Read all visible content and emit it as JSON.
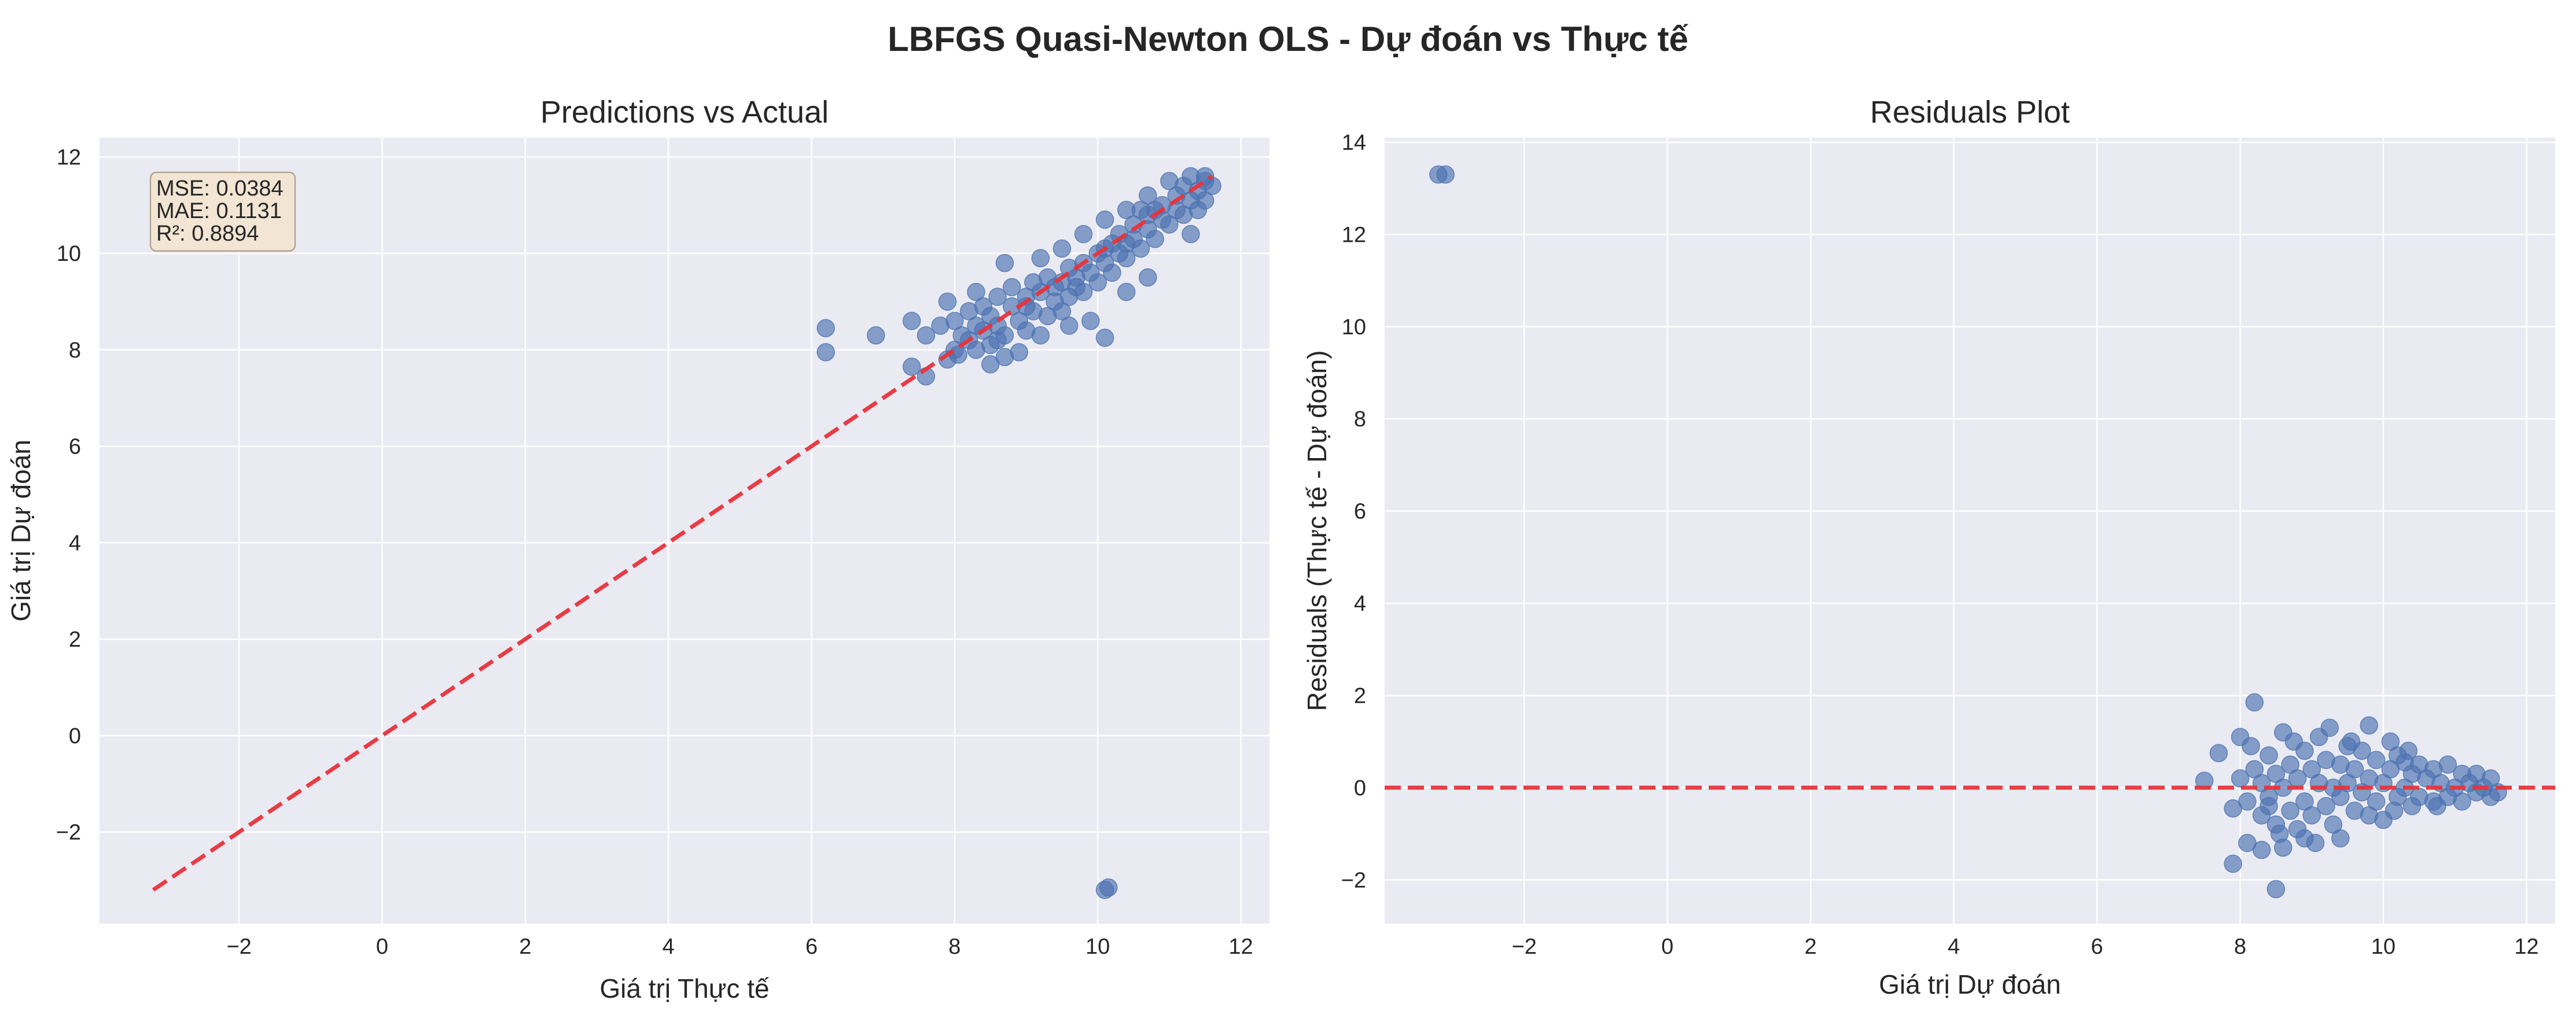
{
  "figure": {
    "title": "LBFGS Quasi-Newton OLS - Dự đoán vs Thực tế"
  },
  "colors": {
    "axes_bg": "#eaeaf2",
    "grid": "#ffffff",
    "point": "#4c72b0",
    "reference_line": "#e8333a",
    "metrics_box": "#f2e5d3",
    "metrics_border": "#b2a58f"
  },
  "chart_data": [
    {
      "type": "scatter",
      "title": "Predictions vs Actual",
      "xlabel": "Giá trị Thực tế",
      "ylabel": "Giá trị Dự đoán",
      "xlim": [
        -3.95,
        12.4
      ],
      "ylim": [
        -3.9,
        12.4
      ],
      "xticks": [
        -2,
        0,
        2,
        4,
        6,
        8,
        10,
        12
      ],
      "yticks": [
        -2,
        0,
        2,
        4,
        6,
        8,
        10,
        12
      ],
      "grid": true,
      "reference_line": {
        "style": "dashed",
        "from": [
          -3.2,
          -3.2
        ],
        "to": [
          11.6,
          11.6
        ]
      },
      "metrics": [
        "MSE: 0.0384",
        "MAE: 0.1131",
        "R²: 0.8894"
      ],
      "metrics_placement": "top-left",
      "points": [
        [
          6.2,
          8.45
        ],
        [
          6.2,
          7.95
        ],
        [
          6.9,
          8.3
        ],
        [
          10.15,
          -3.15
        ],
        [
          10.1,
          -3.2
        ],
        [
          10.1,
          8.25
        ],
        [
          7.4,
          8.6
        ],
        [
          7.4,
          7.65
        ],
        [
          7.6,
          7.45
        ],
        [
          7.9,
          7.8
        ],
        [
          8.05,
          7.9
        ],
        [
          8.5,
          7.7
        ],
        [
          8.7,
          7.85
        ],
        [
          8.9,
          7.95
        ],
        [
          9.2,
          8.3
        ],
        [
          9.6,
          8.5
        ],
        [
          9.9,
          8.6
        ],
        [
          10.4,
          9.2
        ],
        [
          10.7,
          9.5
        ],
        [
          11.3,
          10.4
        ],
        [
          11.4,
          10.9
        ],
        [
          7.9,
          9.0
        ],
        [
          8.3,
          9.2
        ],
        [
          8.7,
          9.8
        ],
        [
          9.2,
          9.9
        ],
        [
          9.5,
          10.1
        ],
        [
          9.8,
          10.4
        ],
        [
          10.1,
          10.7
        ],
        [
          10.4,
          10.9
        ],
        [
          10.7,
          11.2
        ],
        [
          11.0,
          11.5
        ],
        [
          11.3,
          11.6
        ],
        [
          11.5,
          11.6
        ],
        [
          7.6,
          8.3
        ],
        [
          7.8,
          8.5
        ],
        [
          8.0,
          8.0
        ],
        [
          8.0,
          8.6
        ],
        [
          8.1,
          8.3
        ],
        [
          8.2,
          8.8
        ],
        [
          8.2,
          8.2
        ],
        [
          8.3,
          8.5
        ],
        [
          8.4,
          8.9
        ],
        [
          8.4,
          8.4
        ],
        [
          8.5,
          8.1
        ],
        [
          8.5,
          8.7
        ],
        [
          8.6,
          9.1
        ],
        [
          8.6,
          8.5
        ],
        [
          8.7,
          8.3
        ],
        [
          8.8,
          8.9
        ],
        [
          8.8,
          9.3
        ],
        [
          8.9,
          8.6
        ],
        [
          9.0,
          9.1
        ],
        [
          9.0,
          8.4
        ],
        [
          9.1,
          9.4
        ],
        [
          9.1,
          8.8
        ],
        [
          9.2,
          9.2
        ],
        [
          9.3,
          8.7
        ],
        [
          9.3,
          9.5
        ],
        [
          9.4,
          9.0
        ],
        [
          9.5,
          9.4
        ],
        [
          9.5,
          8.8
        ],
        [
          9.6,
          9.7
        ],
        [
          9.6,
          9.1
        ],
        [
          9.7,
          9.5
        ],
        [
          9.8,
          9.8
        ],
        [
          9.8,
          9.2
        ],
        [
          9.9,
          9.6
        ],
        [
          10.0,
          10.0
        ],
        [
          10.0,
          9.4
        ],
        [
          10.1,
          9.8
        ],
        [
          10.2,
          10.2
        ],
        [
          10.2,
          9.6
        ],
        [
          10.3,
          10.0
        ],
        [
          10.3,
          10.4
        ],
        [
          10.4,
          9.9
        ],
        [
          10.5,
          10.3
        ],
        [
          10.5,
          10.6
        ],
        [
          10.6,
          10.1
        ],
        [
          10.7,
          10.5
        ],
        [
          10.7,
          10.8
        ],
        [
          10.8,
          10.3
        ],
        [
          10.9,
          10.7
        ],
        [
          10.9,
          11.0
        ],
        [
          11.0,
          10.6
        ],
        [
          11.1,
          10.9
        ],
        [
          11.1,
          11.2
        ],
        [
          11.2,
          10.8
        ],
        [
          11.3,
          11.1
        ],
        [
          11.4,
          11.3
        ],
        [
          11.5,
          11.1
        ],
        [
          11.5,
          11.5
        ],
        [
          11.6,
          11.4
        ],
        [
          8.3,
          8.0
        ],
        [
          8.6,
          8.2
        ],
        [
          9.0,
          8.9
        ],
        [
          9.4,
          9.3
        ],
        [
          9.7,
          9.3
        ],
        [
          10.1,
          10.1
        ],
        [
          10.4,
          10.2
        ],
        [
          10.8,
          10.9
        ],
        [
          11.2,
          11.4
        ],
        [
          10.6,
          10.9
        ]
      ]
    },
    {
      "type": "scatter",
      "title": "Residuals Plot",
      "xlabel": "Giá trị Dự đoán",
      "ylabel": "Residuals (Thực tế - Dự đoán)",
      "xlim": [
        -3.95,
        12.4
      ],
      "ylim": [
        -2.95,
        14.1
      ],
      "xticks": [
        -2,
        0,
        2,
        4,
        6,
        8,
        10,
        12
      ],
      "yticks": [
        -2,
        0,
        2,
        4,
        6,
        8,
        10,
        12,
        14
      ],
      "grid": true,
      "reference_line": {
        "style": "dashed",
        "y": 0
      },
      "points": [
        [
          -3.2,
          13.3
        ],
        [
          -3.1,
          13.3
        ],
        [
          7.5,
          0.15
        ],
        [
          7.7,
          0.75
        ],
        [
          7.9,
          -0.45
        ],
        [
          7.9,
          -1.65
        ],
        [
          8.0,
          1.1
        ],
        [
          8.1,
          -1.2
        ],
        [
          8.2,
          1.85
        ],
        [
          8.3,
          -1.35
        ],
        [
          8.4,
          -0.4
        ],
        [
          8.5,
          -2.2
        ],
        [
          8.6,
          -1.3
        ],
        [
          8.9,
          -1.1
        ],
        [
          9.4,
          -1.1
        ],
        [
          9.8,
          1.35
        ],
        [
          10.1,
          1.0
        ],
        [
          10.3,
          0.55
        ],
        [
          8.0,
          0.2
        ],
        [
          8.1,
          -0.3
        ],
        [
          8.2,
          0.4
        ],
        [
          8.3,
          0.1
        ],
        [
          8.3,
          -0.6
        ],
        [
          8.4,
          0.7
        ],
        [
          8.4,
          -0.2
        ],
        [
          8.5,
          0.3
        ],
        [
          8.5,
          -0.8
        ],
        [
          8.6,
          1.2
        ],
        [
          8.6,
          0.0
        ],
        [
          8.7,
          0.5
        ],
        [
          8.7,
          -0.5
        ],
        [
          8.8,
          0.2
        ],
        [
          8.8,
          -0.9
        ],
        [
          8.9,
          0.8
        ],
        [
          8.9,
          -0.3
        ],
        [
          9.0,
          0.4
        ],
        [
          9.0,
          -0.6
        ],
        [
          9.1,
          0.1
        ],
        [
          9.1,
          1.1
        ],
        [
          9.2,
          -0.4
        ],
        [
          9.2,
          0.6
        ],
        [
          9.3,
          0.0
        ],
        [
          9.3,
          -0.8
        ],
        [
          9.4,
          0.5
        ],
        [
          9.4,
          -0.2
        ],
        [
          9.5,
          0.9
        ],
        [
          9.5,
          0.1
        ],
        [
          9.6,
          -0.5
        ],
        [
          9.6,
          0.4
        ],
        [
          9.7,
          -0.1
        ],
        [
          9.7,
          0.8
        ],
        [
          9.8,
          0.2
        ],
        [
          9.8,
          -0.6
        ],
        [
          9.9,
          0.6
        ],
        [
          9.9,
          -0.3
        ],
        [
          10.0,
          0.1
        ],
        [
          10.0,
          -0.7
        ],
        [
          10.1,
          0.4
        ],
        [
          10.2,
          -0.2
        ],
        [
          10.2,
          0.7
        ],
        [
          10.3,
          0.0
        ],
        [
          10.4,
          -0.4
        ],
        [
          10.4,
          0.3
        ],
        [
          10.5,
          0.5
        ],
        [
          10.5,
          -0.2
        ],
        [
          10.6,
          0.2
        ],
        [
          10.7,
          -0.3
        ],
        [
          10.7,
          0.4
        ],
        [
          10.8,
          0.1
        ],
        [
          10.9,
          -0.2
        ],
        [
          10.9,
          0.5
        ],
        [
          11.0,
          0.0
        ],
        [
          11.1,
          0.3
        ],
        [
          11.1,
          -0.3
        ],
        [
          11.2,
          0.1
        ],
        [
          11.3,
          -0.1
        ],
        [
          11.3,
          0.3
        ],
        [
          11.4,
          0.0
        ],
        [
          11.5,
          -0.2
        ],
        [
          11.5,
          0.2
        ],
        [
          11.6,
          -0.1
        ],
        [
          8.15,
          0.9
        ],
        [
          8.55,
          -1.0
        ],
        [
          9.05,
          -1.2
        ],
        [
          9.55,
          1.0
        ],
        [
          10.35,
          0.8
        ],
        [
          9.25,
          1.3
        ],
        [
          8.75,
          1.0
        ],
        [
          10.15,
          -0.5
        ],
        [
          10.75,
          -0.4
        ]
      ]
    }
  ]
}
